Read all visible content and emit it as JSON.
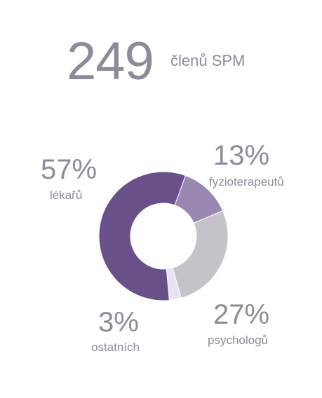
{
  "headline": {
    "number": "249",
    "caption": "členů SPM"
  },
  "chart_data": {
    "type": "pie",
    "title": "",
    "slices": [
      {
        "label": "fyzioterapeutů",
        "percent_text": "13%",
        "value": 13,
        "color": "#9b88b2"
      },
      {
        "label": "psychologů",
        "percent_text": "27%",
        "value": 27,
        "color": "#c4c3ca"
      },
      {
        "label": "ostatních",
        "percent_text": "3%",
        "value": 3,
        "color": "#e9e3f4"
      },
      {
        "label": "lékařů",
        "percent_text": "57%",
        "value": 57,
        "color": "#6a5089"
      }
    ]
  }
}
